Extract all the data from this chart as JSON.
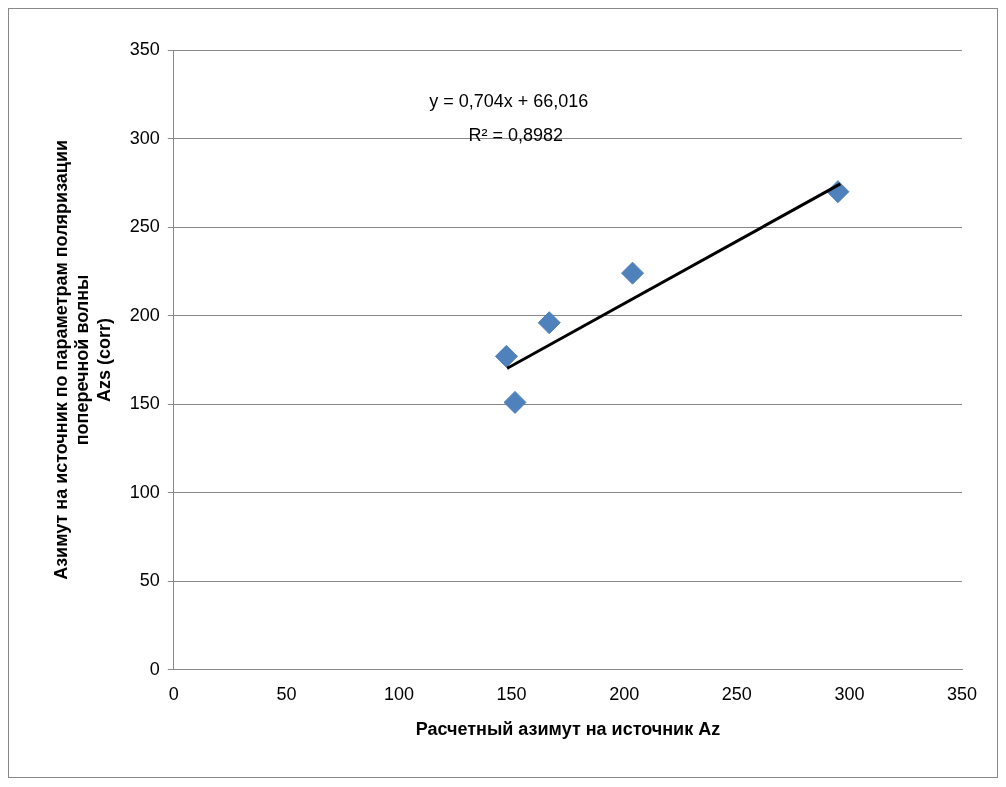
{
  "chart_data": {
    "type": "scatter",
    "xlabel": "Расчетный азимут на источник Az",
    "ylabel": "Азимут на источник по параметрам поляризации\nпоперечной волны\nAzs (corr)",
    "x": [
      147.7,
      151.5,
      166.7,
      203.7,
      294.9
    ],
    "series": [
      {
        "color": "#4f81bd",
        "values": [
          177,
          151,
          196,
          224,
          270
        ],
        "marker": "diamond"
      },
      {
        "type": "line",
        "color": "#000000",
        "x": [
          148,
          296
        ],
        "values": [
          170.2,
          274.4
        ],
        "marker": "none"
      }
    ],
    "xlim": [
      0,
      350
    ],
    "xticks": [
      0,
      50,
      100,
      150,
      200,
      250,
      300,
      350
    ],
    "ylim": [
      0,
      350
    ],
    "yticks": [
      0,
      50,
      100,
      150,
      200,
      250,
      300,
      350
    ],
    "grid": "y",
    "legend": false,
    "annotations": [
      "y = 0,704x + 66,016",
      "R² = 0,8982"
    ]
  }
}
